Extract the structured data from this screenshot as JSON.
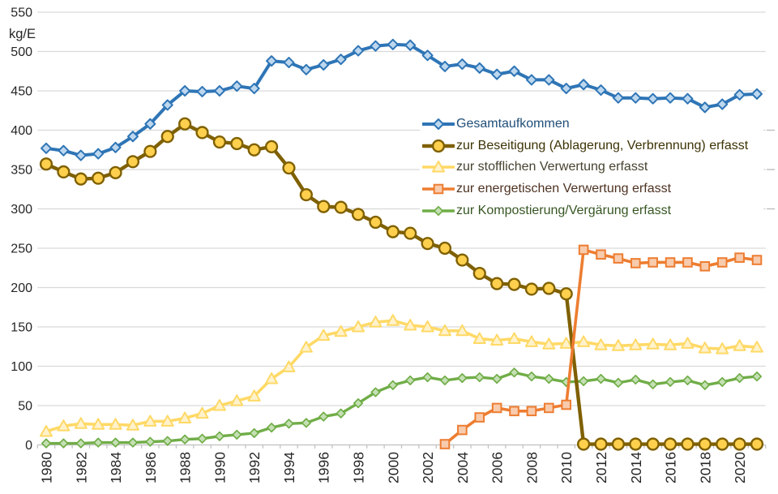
{
  "chart_data": {
    "type": "line",
    "title": "",
    "ylabel": "kg/E",
    "grid": true,
    "legend_position": "inside-right",
    "background": "#FFFFFF",
    "grid_color": "#D9D9D9",
    "axis_color": "#BFBFBF",
    "tick_text_color": "#262626",
    "x": [
      1980,
      1981,
      1982,
      1983,
      1984,
      1985,
      1986,
      1987,
      1988,
      1989,
      1990,
      1991,
      1992,
      1993,
      1994,
      1995,
      1996,
      1997,
      1998,
      1999,
      2000,
      2001,
      2002,
      2003,
      2004,
      2005,
      2006,
      2007,
      2008,
      2009,
      2010,
      2011,
      2012,
      2013,
      2014,
      2015,
      2016,
      2017,
      2018,
      2019,
      2020,
      2021
    ],
    "x_tick_labels": [
      "1980",
      "1982",
      "1984",
      "1986",
      "1988",
      "1990",
      "1992",
      "1994",
      "1996",
      "1998",
      "2000",
      "2002",
      "2004",
      "2006",
      "2008",
      "2010",
      "2012",
      "2014",
      "2016",
      "2018",
      "2020"
    ],
    "y_ticks": [
      0,
      50,
      100,
      150,
      200,
      250,
      300,
      350,
      400,
      450,
      500,
      550
    ],
    "ylim": [
      0,
      550
    ],
    "series": [
      {
        "id": "gesamtaufkommen",
        "name": "Gesamtaufkommen",
        "color": "#2E75B6",
        "marker": "diamond",
        "marker_fill": "#BDD7EE",
        "legend_text_color": "#1F4E79",
        "values": [
          377,
          374,
          368,
          370,
          378,
          392,
          408,
          432,
          450,
          449,
          450,
          456,
          453,
          488,
          486,
          477,
          483,
          490,
          501,
          507,
          509,
          508,
          495,
          481,
          484,
          479,
          471,
          475,
          464,
          464,
          453,
          458,
          451,
          441,
          441,
          440,
          441,
          440,
          429,
          433,
          445,
          446
        ]
      },
      {
        "id": "beseitigung",
        "name": "zur Beseitigung (Ablagerung, Verbrennung) erfasst",
        "color": "#7F6000",
        "marker": "circle",
        "marker_fill": "#FFD04D",
        "legend_text_color": "#3D3305",
        "values": [
          357,
          347,
          338,
          339,
          346,
          360,
          373,
          392,
          408,
          397,
          385,
          383,
          375,
          379,
          352,
          318,
          303,
          302,
          293,
          283,
          271,
          269,
          256,
          250,
          235,
          218,
          205,
          204,
          198,
          199,
          192,
          1,
          1,
          1,
          1,
          1,
          1,
          1,
          1,
          1,
          1,
          1
        ]
      },
      {
        "id": "stoffliche-verwertung",
        "name": "zur stofflichen Verwertung erfasst",
        "color": "#FFD966",
        "marker": "triangle",
        "marker_fill": "#FFF2CC",
        "legend_text_color": "#46422F",
        "values": [
          17,
          24,
          27,
          26,
          26,
          25,
          30,
          30,
          34,
          40,
          50,
          56,
          62,
          84,
          99,
          124,
          139,
          144,
          150,
          156,
          158,
          152,
          150,
          145,
          145,
          135,
          133,
          135,
          131,
          128,
          129,
          131,
          127,
          126,
          127,
          128,
          127,
          129,
          123,
          122,
          126,
          124
        ]
      },
      {
        "id": "energetische-verwertung",
        "name": "zur energetischen Verwertung erfasst",
        "color": "#ED7D31",
        "marker": "square",
        "marker_fill": "#F8CBAD",
        "legend_text_color": "#4E3222",
        "values": [
          null,
          null,
          null,
          null,
          null,
          null,
          null,
          null,
          null,
          null,
          null,
          null,
          null,
          null,
          null,
          null,
          null,
          null,
          null,
          null,
          null,
          null,
          null,
          1,
          19,
          35,
          47,
          43,
          43,
          47,
          51,
          248,
          242,
          237,
          231,
          232,
          232,
          232,
          227,
          232,
          238,
          235
        ]
      },
      {
        "id": "kompostierung-vergaerung",
        "name": "zur Kompostierung/Vergärung erfasst",
        "color": "#70AD47",
        "marker": "diamond",
        "marker_fill": "#C5E0B4",
        "legend_text_color": "#375623",
        "values": [
          2,
          2,
          2,
          3,
          3,
          3,
          4,
          5,
          7,
          8,
          11,
          13,
          15,
          22,
          27,
          28,
          36,
          40,
          53,
          67,
          76,
          82,
          86,
          82,
          85,
          86,
          84,
          92,
          87,
          84,
          80,
          81,
          84,
          79,
          83,
          77,
          80,
          82,
          76,
          80,
          85,
          87
        ]
      }
    ]
  }
}
